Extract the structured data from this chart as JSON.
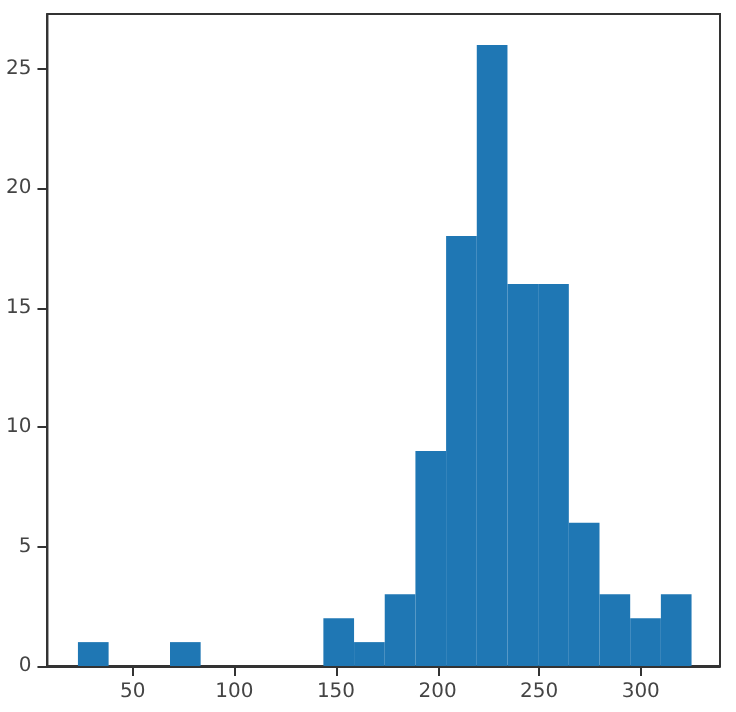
{
  "chart_data": {
    "type": "histogram",
    "bins": [
      23,
      38.1,
      53.2,
      68.3,
      83.4,
      98.5,
      113.6,
      128.7,
      143.8,
      158.9,
      174,
      189.1,
      204.2,
      219.3,
      234.4,
      249.5,
      264.6,
      279.7,
      294.8,
      309.9,
      325
    ],
    "values": [
      1,
      0,
      0,
      1,
      0,
      0,
      0,
      0,
      2,
      1,
      3,
      9,
      18,
      26,
      16,
      16,
      6,
      3,
      2,
      3
    ],
    "color": "#1f77b4",
    "xlim": [
      8,
      339
    ],
    "xticks": [
      50,
      100,
      150,
      200,
      250,
      300
    ],
    "ylim": [
      0,
      27.3
    ],
    "yticks": [
      0,
      5,
      10,
      15,
      20,
      25
    ],
    "grid": false
  }
}
